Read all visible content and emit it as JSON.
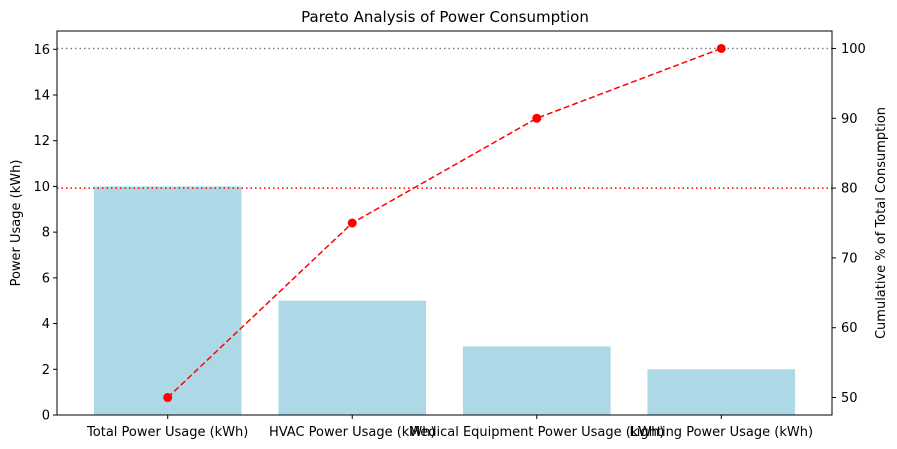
{
  "chart_data": {
    "type": "bar",
    "title": "Pareto Analysis of Power Consumption",
    "categories": [
      "Total Power Usage (kWh)",
      "HVAC Power Usage (kWh)",
      "Medical Equipment Power Usage (kWh)",
      "Lighting Power Usage (kWh)"
    ],
    "series": [
      {
        "type": "bar",
        "axis": "left",
        "values": [
          10,
          5,
          3,
          2
        ],
        "color": "#add8e6"
      },
      {
        "type": "line",
        "axis": "right",
        "values": [
          50,
          75,
          90,
          100
        ],
        "color": "#ff0000",
        "line_style": "dashed",
        "marker": "circle"
      }
    ],
    "xlabel": "",
    "ylabel": "Power Usage (kWh)",
    "ylim": [
      0,
      16.8
    ],
    "yticks": [
      0,
      2,
      4,
      6,
      8,
      10,
      12,
      14,
      16
    ],
    "y2label": "Cumulative % of Total Consumption",
    "y2lim": [
      47.5,
      102.5
    ],
    "y2ticks": [
      50,
      60,
      70,
      80,
      90,
      100
    ],
    "reference_lines": [
      {
        "axis": "right",
        "value": 80,
        "color": "#ff0000",
        "style": "dotted"
      },
      {
        "axis": "right",
        "value": 100,
        "color": "#808080",
        "style": "dotted"
      }
    ],
    "grid": false,
    "legend": "none"
  }
}
